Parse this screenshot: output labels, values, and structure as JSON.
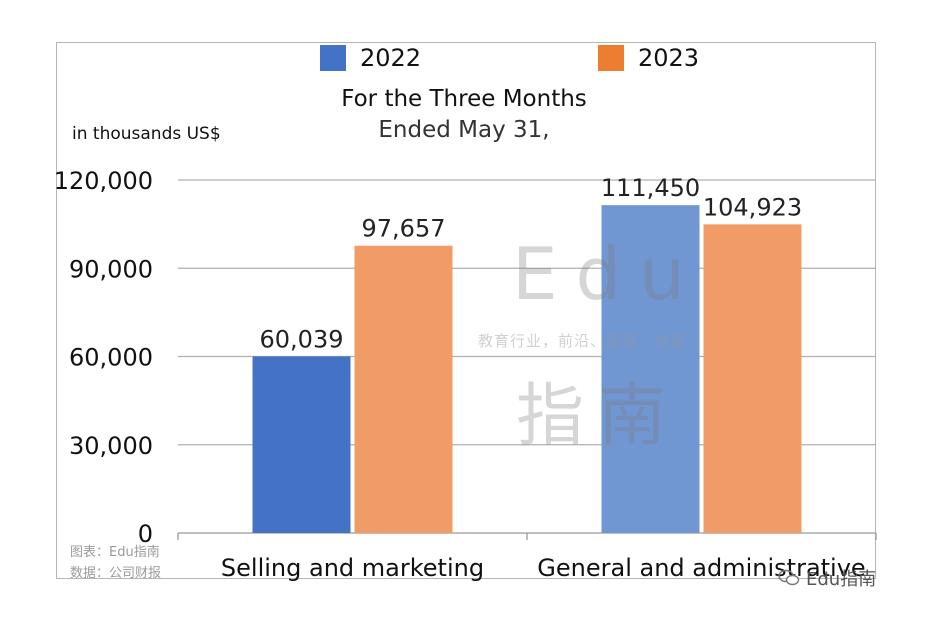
{
  "legend": [
    {
      "label": "2022",
      "color": "#4472C4"
    },
    {
      "label": "2023",
      "color": "#ED7D31"
    }
  ],
  "title_line1": "For the Three Months",
  "title_line2": "Ended May 31,",
  "ylabel": "in thousands US$",
  "watermark": {
    "edu": "Edu",
    "tagline": "教育行业，前沿、深度、独家",
    "cn": "指南"
  },
  "source": {
    "chart_credit": "图表：Edu指南",
    "data_credit": "数据：公司财报"
  },
  "brand": {
    "icon": "wechat-icon",
    "text": "Edu指南"
  },
  "chart_data": {
    "type": "bar",
    "categories": [
      "Selling and marketing",
      "General and administrative"
    ],
    "series": [
      {
        "name": "2022",
        "values": [
          60039,
          111450
        ],
        "labels": [
          "60,039",
          "111,450"
        ],
        "colors": [
          "#4472C4",
          "#7197D3"
        ]
      },
      {
        "name": "2023",
        "values": [
          97657,
          104923
        ],
        "labels": [
          "97,657",
          "104,923"
        ],
        "colors": [
          "#F19C66",
          "#F19C66"
        ]
      }
    ],
    "ylim": [
      0,
      120000
    ],
    "yticks": [
      0,
      30000,
      60000,
      90000,
      120000
    ],
    "ytick_labels": [
      "0",
      "30,000",
      "60,000",
      "90,000",
      "120,000"
    ],
    "grid": true,
    "legend_position": "top"
  }
}
